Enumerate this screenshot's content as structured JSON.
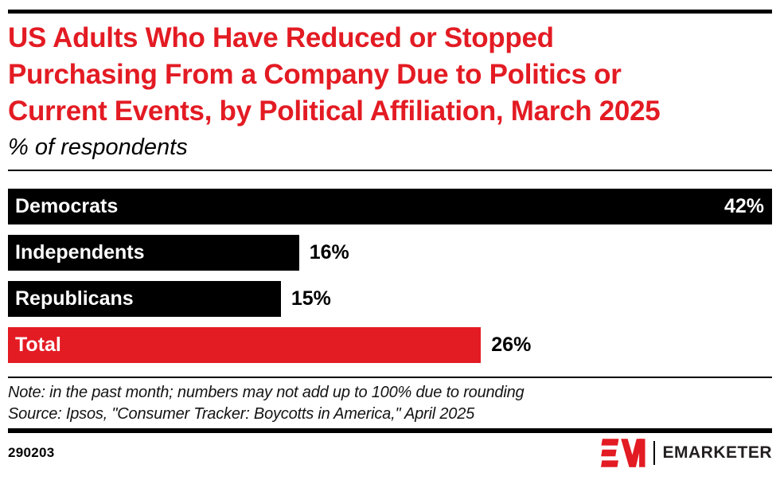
{
  "header": {
    "title_lines": [
      "US Adults Who Have Reduced or Stopped",
      "Purchasing From a Company Due to Politics or",
      "Current Events, by Political Affiliation, March 2025"
    ],
    "title": "US Adults Who Have Reduced or Stopped Purchasing From a Company Due to Politics or Current Events, by Political Affiliation, March 2025",
    "subtitle": "% of respondents"
  },
  "chart_data": {
    "type": "bar",
    "orientation": "horizontal",
    "title": "US Adults Who Have Reduced or Stopped Purchasing From a Company Due to Politics or Current Events, by Political Affiliation, March 2025",
    "subtitle": "% of respondents",
    "categories": [
      "Democrats",
      "Independents",
      "Republicans",
      "Total"
    ],
    "values": [
      42,
      16,
      15,
      26
    ],
    "value_suffix": "%",
    "max_value": 42,
    "bar_colors": [
      "#000000",
      "#000000",
      "#000000",
      "#e31b23"
    ],
    "label_position": "inside-left",
    "xlabel": "",
    "ylabel": "",
    "grid": false,
    "legend": false
  },
  "footnotes": {
    "note": "Note: in the past month; numbers may not add up to 100% due to rounding",
    "source": "Source: Ipsos, \"Consumer Tracker: Boycotts in America,\" April 2025"
  },
  "footer": {
    "chart_id": "290203",
    "brand_wordmark": "EMARKETER"
  },
  "colors": {
    "accent_red": "#e31b23",
    "bar_black": "#000000",
    "background": "#ffffff"
  },
  "icons": {
    "brand_mark": "emarketer-em-logo-icon"
  }
}
